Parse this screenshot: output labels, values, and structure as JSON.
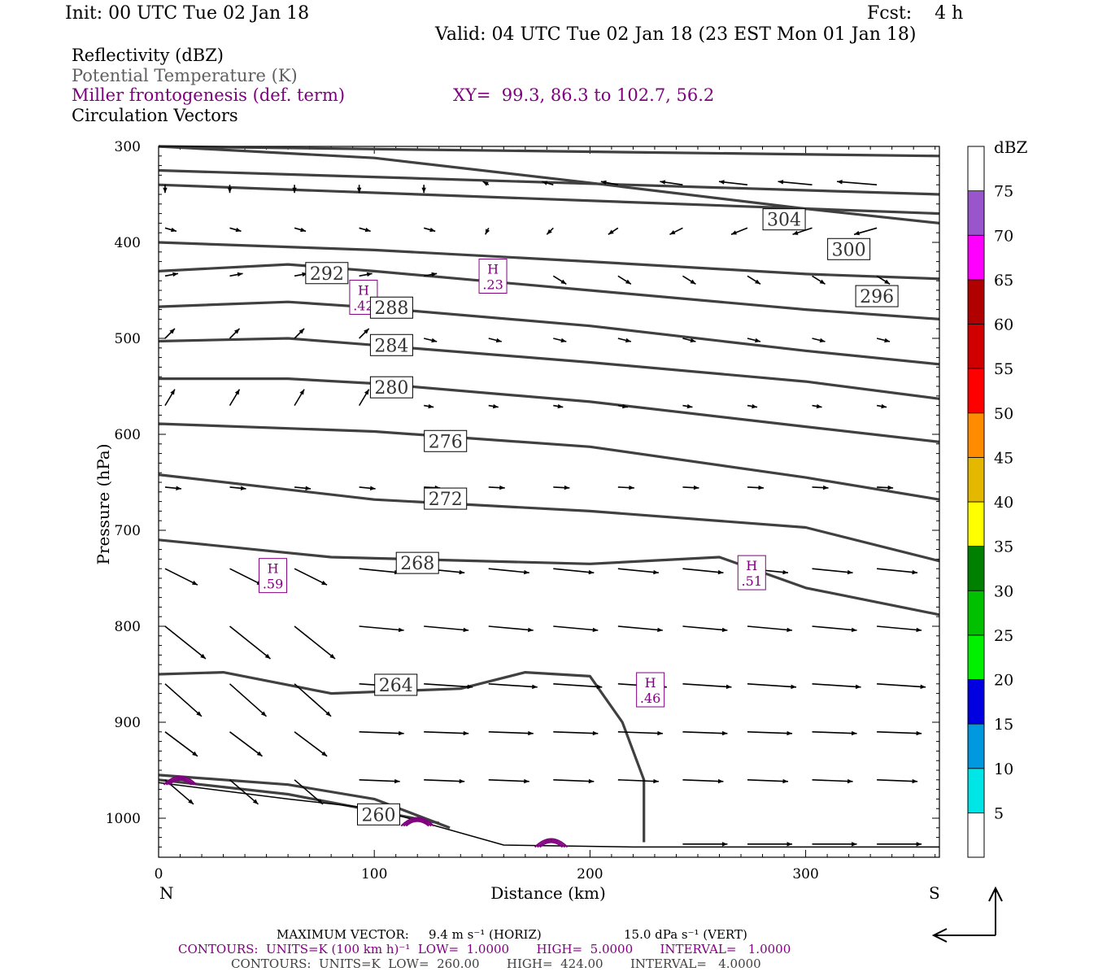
{
  "header": {
    "init": "Init: 00 UTC Tue 02 Jan 18",
    "fcst": "Fcst:    4 h",
    "valid": "Valid: 04 UTC Tue 02 Jan 18 (23 EST Mon 01 Jan 18)"
  },
  "legend": {
    "reflectivity": "Reflectivity (dBZ)",
    "theta": "Potential Temperature (K)",
    "miller": "Miller frontogenesis (def. term)",
    "xy": "XY=  99.3, 86.3 to 102.7, 56.2",
    "vectors": "Circulation Vectors"
  },
  "footer": {
    "maxvec_label": "MAXIMUM VECTOR:",
    "maxvec_horiz": "9.4 m s⁻¹ (HORIZ)",
    "maxvec_vert": "15.0 dPa s⁻¹ (VERT)",
    "contours1": "CONTOURS:  UNITS=K (100 km h)⁻¹  LOW=  1.0000       HIGH=  5.0000       INTERVAL=   1.0000",
    "contours2": "CONTOURS:  UNITS=K  LOW=  260.00       HIGH=  424.00       INTERVAL=   4.0000"
  },
  "colors": {
    "theta": "#404040",
    "miller": "#800080",
    "vectors": "#000000"
  },
  "chart_data": {
    "type": "cross-section",
    "xlabel": "Distance (km)",
    "ylabel": "Pressure (hPa)",
    "x_end_labels": [
      "N",
      "S"
    ],
    "xlim": [
      0,
      362
    ],
    "ylim_hpa": [
      300,
      1030
    ],
    "x_ticks": [
      0,
      100,
      200,
      300
    ],
    "y_ticks": [
      300,
      400,
      500,
      600,
      700,
      800,
      900,
      1000
    ],
    "colorbar": {
      "unit": "dBZ",
      "levels": [
        5,
        10,
        15,
        20,
        25,
        30,
        35,
        40,
        45,
        50,
        55,
        60,
        65,
        70,
        75
      ],
      "colors": [
        "#ffffff",
        "#00e5e5",
        "#0099e0",
        "#0000e0",
        "#00f000",
        "#00c000",
        "#008000",
        "#ffff00",
        "#e5b800",
        "#ff8c00",
        "#ff0000",
        "#d00000",
        "#b00000",
        "#ff00ff",
        "#9955cc",
        "#ffffff"
      ]
    },
    "theta_contours": [
      {
        "label": "304",
        "lx": 290,
        "lp": 376,
        "pts": [
          [
            0,
            300
          ],
          [
            100,
            312
          ],
          [
            200,
            338
          ],
          [
            300,
            365
          ],
          [
            362,
            380
          ]
        ]
      },
      {
        "label": "300",
        "lx": 320,
        "lp": 407,
        "pts": [
          [
            0,
            400
          ],
          [
            100,
            408
          ],
          [
            200,
            420
          ],
          [
            300,
            433
          ],
          [
            362,
            438
          ]
        ]
      },
      {
        "label": "296",
        "lx": 333,
        "lp": 456,
        "pts": [
          [
            0,
            430
          ],
          [
            60,
            423
          ],
          [
            100,
            430
          ],
          [
            200,
            450
          ],
          [
            300,
            470
          ],
          [
            362,
            480
          ]
        ]
      },
      {
        "label": "292",
        "lx": 78,
        "lp": 432,
        "pts": [
          [
            0,
            467
          ],
          [
            60,
            462
          ],
          [
            100,
            468
          ],
          [
            200,
            487
          ],
          [
            300,
            513
          ],
          [
            362,
            527
          ]
        ]
      },
      {
        "label": "288",
        "lx": 108,
        "lp": 468,
        "pts": [
          [
            0,
            503
          ],
          [
            60,
            500
          ],
          [
            100,
            507
          ],
          [
            200,
            525
          ],
          [
            300,
            545
          ],
          [
            362,
            563
          ]
        ]
      },
      {
        "label": "284",
        "lx": 108,
        "lp": 507,
        "pts": [
          [
            0,
            542
          ],
          [
            60,
            542
          ],
          [
            100,
            547
          ],
          [
            200,
            566
          ],
          [
            300,
            592
          ],
          [
            362,
            608
          ]
        ]
      },
      {
        "label": "280",
        "lx": 108,
        "lp": 551,
        "pts": [
          [
            0,
            589
          ],
          [
            100,
            597
          ],
          [
            200,
            613
          ],
          [
            300,
            645
          ],
          [
            362,
            668
          ]
        ]
      },
      {
        "label": "276",
        "lx": 133,
        "lp": 607,
        "pts": [
          [
            0,
            642
          ],
          [
            100,
            668
          ],
          [
            200,
            680
          ],
          [
            300,
            697
          ],
          [
            362,
            732
          ]
        ]
      },
      {
        "label": "272",
        "lx": 133,
        "lp": 667,
        "pts": [
          [
            0,
            710
          ],
          [
            80,
            728
          ],
          [
            200,
            735
          ],
          [
            260,
            728
          ],
          [
            300,
            760
          ],
          [
            362,
            788
          ]
        ]
      },
      {
        "label": "268",
        "lx": 120,
        "lp": 734,
        "pts": [
          [
            0,
            850
          ],
          [
            30,
            848
          ],
          [
            80,
            870
          ],
          [
            140,
            865
          ],
          [
            170,
            848
          ],
          [
            200,
            852
          ],
          [
            215,
            900
          ],
          [
            225,
            960
          ],
          [
            225,
            1025
          ]
        ]
      },
      {
        "label": "264",
        "lx": 110,
        "lp": 861,
        "pts": [
          [
            0,
            955
          ],
          [
            60,
            965
          ],
          [
            100,
            980
          ],
          [
            135,
            1010
          ]
        ]
      },
      {
        "label": "260",
        "lx": 102,
        "lp": 996,
        "pts": [
          [
            0,
            960
          ],
          [
            60,
            975
          ],
          [
            130,
            1005
          ]
        ]
      }
    ],
    "miller_highs": [
      {
        "value": ".23",
        "x": 155,
        "p": 436
      },
      {
        "value": ".42",
        "x": 95,
        "p": 458
      },
      {
        "value": ".59",
        "x": 53,
        "p": 748
      },
      {
        "value": ".51",
        "x": 275,
        "p": 745
      },
      {
        "value": ".46",
        "x": 228,
        "p": 867
      }
    ]
  }
}
